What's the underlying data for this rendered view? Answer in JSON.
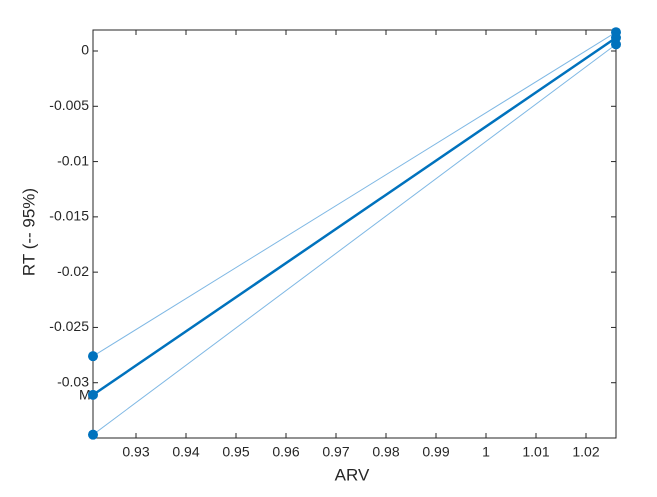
{
  "chart_data": {
    "type": "line",
    "x_label": "ARV",
    "y_label": "RT (-- 95%)",
    "annotation": "M",
    "xlim": [
      0.9214,
      1.026
    ],
    "ylim": [
      -0.035,
      0.0019
    ],
    "xticks": [
      0.93,
      0.94,
      0.95,
      0.96,
      0.97,
      0.98,
      0.99,
      1,
      1.01,
      1.02
    ],
    "yticks": [
      0,
      -0.005,
      -0.01,
      -0.015,
      -0.02,
      -0.025,
      -0.03
    ],
    "series": [
      {
        "color": "#7fb8e4",
        "x": [
          0.9214,
          1.026
        ],
        "values": [
          -0.0276,
          0.0017
        ]
      },
      {
        "color": "#0072bd",
        "x": [
          0.9214,
          1.026
        ],
        "values": [
          -0.0311,
          0.0012
        ]
      },
      {
        "color": "#7fb8e4",
        "x": [
          0.9214,
          1.026
        ],
        "values": [
          -0.0347,
          0.0006
        ]
      }
    ]
  }
}
